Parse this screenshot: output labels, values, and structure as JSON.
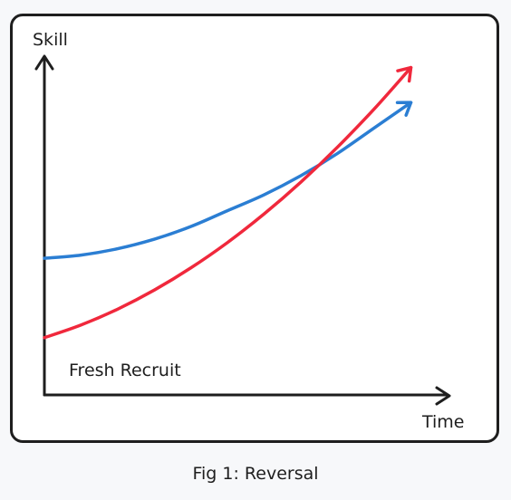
{
  "caption": "Fig 1: Reversal",
  "chart_data": {
    "type": "line",
    "title": "",
    "xlabel": "Time",
    "ylabel": "Skill",
    "annotations": [
      "Fresh Recruit"
    ],
    "grid": false,
    "legend": "none",
    "x": [
      0,
      0.1,
      0.2,
      0.3,
      0.4,
      0.5,
      0.6,
      0.7,
      0.8,
      0.9,
      1.0
    ],
    "series": [
      {
        "color": "#2b7ed3",
        "values": [
          0.43,
          0.44,
          0.46,
          0.49,
          0.53,
          0.58,
          0.63,
          0.69,
          0.76,
          0.84,
          0.92
        ]
      },
      {
        "color": "#f0283c",
        "values": [
          0.18,
          0.22,
          0.27,
          0.33,
          0.4,
          0.48,
          0.57,
          0.67,
          0.78,
          0.9,
          1.03
        ]
      }
    ],
    "ylim": [
      0,
      1.1
    ],
    "xlim": [
      0,
      1.1
    ]
  },
  "colors": {
    "axis": "#1e1e1e",
    "frame": "#1e1e1e",
    "background": "#f7f8fa"
  }
}
